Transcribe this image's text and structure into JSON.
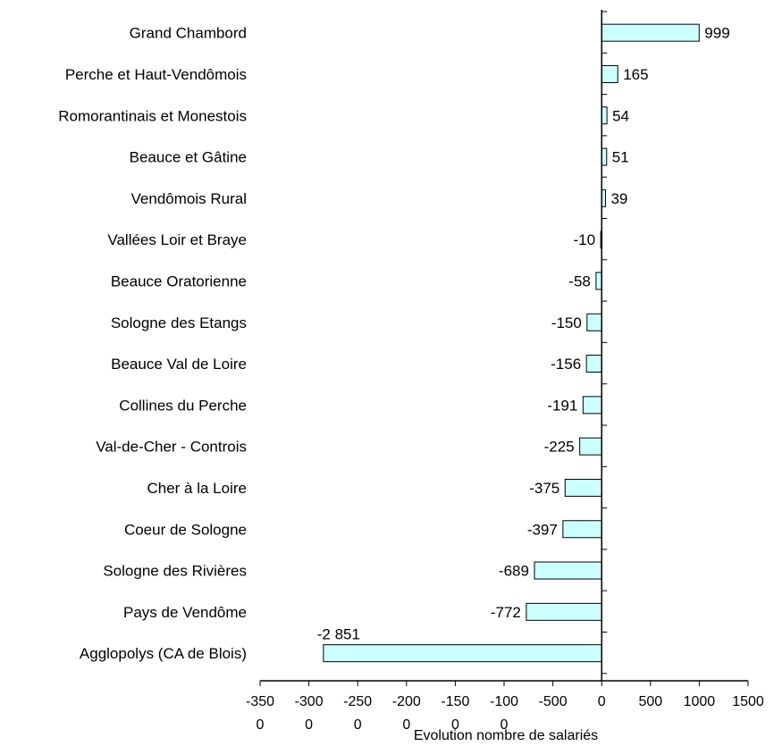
{
  "chart_data": {
    "type": "bar",
    "orientation": "horizontal",
    "categories": [
      "Grand Chambord",
      "Perche et Haut-Vendômois",
      "Romorantinais et Monestois",
      "Beauce et Gâtine",
      "Vendômois Rural",
      "Vallées Loir et Braye",
      "Beauce Oratorienne",
      "Sologne des Etangs",
      "Beauce Val de Loire",
      "Collines du Perche",
      "Val-de-Cher - Controis",
      "Cher à la Loire",
      "Coeur de Sologne",
      "Sologne des Rivières",
      "Pays de Vendôme",
      "Agglopolys (CA de Blois)"
    ],
    "values": [
      999,
      165,
      54,
      51,
      39,
      -10,
      -58,
      -150,
      -156,
      -191,
      -225,
      -375,
      -397,
      -689,
      -772,
      -2851
    ],
    "value_labels": [
      "999",
      "165",
      "54",
      "51",
      "39",
      "-10",
      "-58",
      "-150",
      "-156",
      "-191",
      "-225",
      "-375",
      "-397",
      "-689",
      "-772",
      "-2 851"
    ],
    "xlabel": "Evolution nombre de salariés",
    "ylabel": "",
    "title": "",
    "xlim": [
      -3500,
      1500
    ],
    "xticks": [
      -3500,
      -3000,
      -2500,
      -2000,
      -1500,
      -1000,
      -500,
      0,
      500,
      1000,
      1500
    ],
    "xtick_labels": [
      [
        "-350",
        "0"
      ],
      [
        "-300",
        "0"
      ],
      [
        "-250",
        "0"
      ],
      [
        "-200",
        "0"
      ],
      [
        "-150",
        "0"
      ],
      [
        "-100",
        "0"
      ],
      [
        "-500"
      ],
      [
        "0"
      ],
      [
        "500"
      ],
      [
        "1000"
      ],
      [
        "1500"
      ]
    ],
    "grid": false,
    "legend": "none",
    "colors": {
      "bar_fill": "#ccffff",
      "bar_stroke": "#000000",
      "axis": "#000000"
    }
  }
}
